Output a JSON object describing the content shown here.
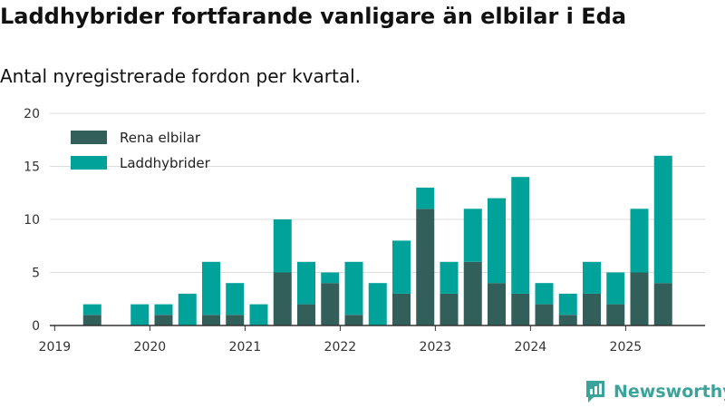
{
  "title": "Laddhybrider fortfarande vanligare än elbilar i Eda",
  "subtitle": "Antal nyregistrerade fordon per kvartal.",
  "brand": {
    "name": "Newsworthy",
    "color": "#3aa39a"
  },
  "chart_data": {
    "type": "bar",
    "stacked": true,
    "categories": [
      "2019-Q1",
      "2019-Q2",
      "2019-Q3",
      "2019-Q4",
      "2020-Q1",
      "2020-Q2",
      "2020-Q3",
      "2020-Q4",
      "2021-Q1",
      "2021-Q2",
      "2021-Q3",
      "2021-Q4",
      "2022-Q1",
      "2022-Q2",
      "2022-Q3",
      "2022-Q4",
      "2023-Q1",
      "2023-Q2",
      "2023-Q3",
      "2023-Q4",
      "2024-Q1",
      "2024-Q2",
      "2024-Q3",
      "2024-Q4",
      "2025-Q1",
      "2025-Q2"
    ],
    "x_tick_labels": [
      "2019",
      "2020",
      "2021",
      "2022",
      "2023",
      "2024",
      "2025"
    ],
    "x_tick_categories": [
      "2019-Q1",
      "2020-Q1",
      "2021-Q1",
      "2022-Q1",
      "2023-Q1",
      "2024-Q1",
      "2025-Q1"
    ],
    "y_ticks": [
      0,
      5,
      10,
      15,
      20
    ],
    "ylim": [
      0,
      20
    ],
    "grid": true,
    "legend_position": "top-left",
    "series": [
      {
        "name": "Rena elbilar",
        "color": "#335f5b",
        "values": [
          0,
          1,
          0,
          0,
          1,
          0,
          1,
          1,
          0,
          5,
          2,
          4,
          1,
          0,
          3,
          11,
          3,
          6,
          4,
          3,
          2,
          1,
          3,
          2,
          5,
          4
        ]
      },
      {
        "name": "Laddhybrider",
        "color": "#00a29a",
        "values": [
          0,
          1,
          0,
          2,
          1,
          3,
          5,
          3,
          2,
          5,
          4,
          1,
          5,
          4,
          5,
          2,
          3,
          5,
          8,
          11,
          2,
          2,
          3,
          3,
          6,
          12
        ]
      }
    ]
  }
}
